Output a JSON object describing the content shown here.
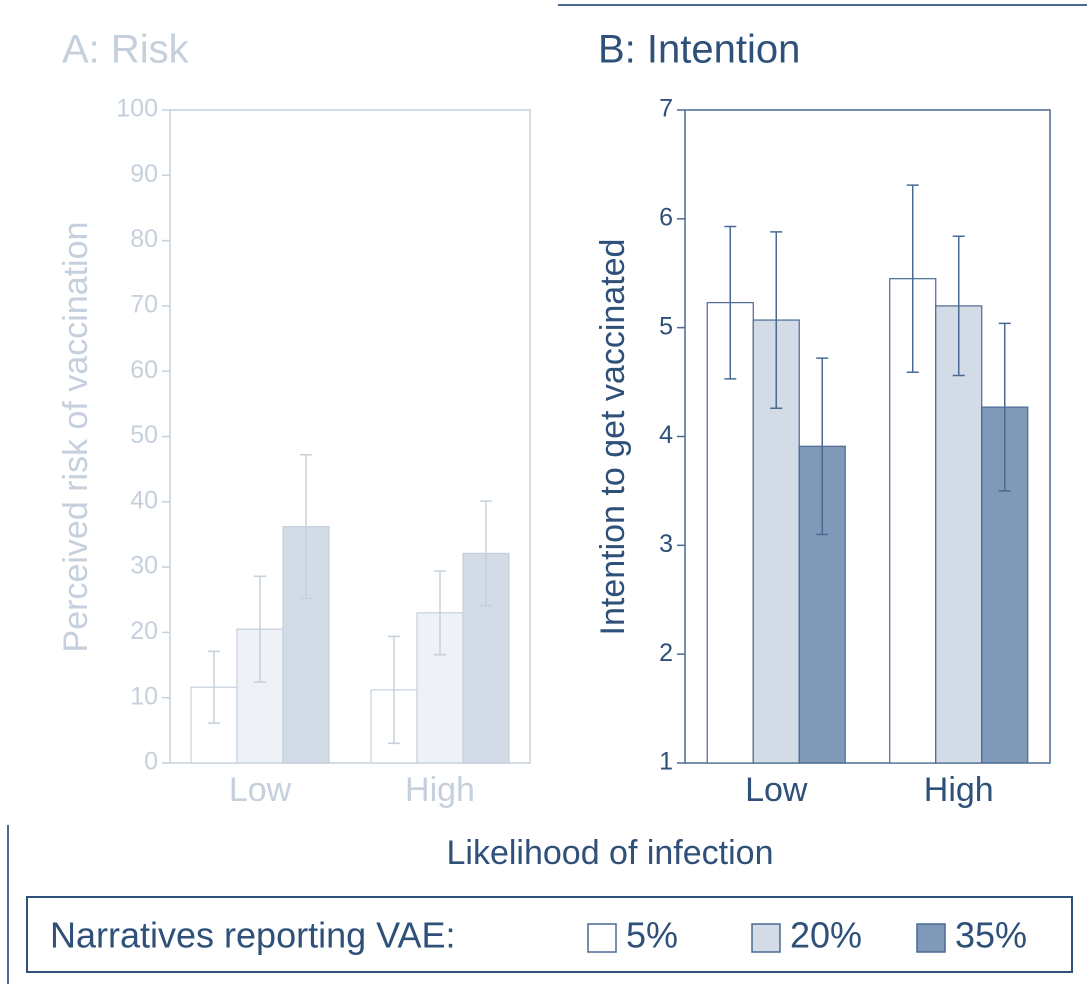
{
  "chart_data": [
    {
      "type": "bar",
      "title": "A: Risk",
      "ylabel": "Perceived risk of vaccination",
      "categories": [
        "Low",
        "High"
      ],
      "series": [
        {
          "name": "5%",
          "color": "#ffffff",
          "values": [
            11.6,
            11.2
          ],
          "errors": [
            5.5,
            8.2
          ]
        },
        {
          "name": "20%",
          "color": "#eef1f6",
          "values": [
            20.5,
            23
          ],
          "errors": [
            8.1,
            6.4
          ]
        },
        {
          "name": "35%",
          "color": "#d3dbe6",
          "values": [
            36.2,
            32.1
          ],
          "errors": [
            11,
            8
          ]
        }
      ],
      "ylim": [
        0,
        100
      ],
      "yticks": [
        0,
        10,
        20,
        30,
        40,
        50,
        60,
        70,
        80,
        90,
        100
      ],
      "text_color": "#c5d0dc",
      "edge_color": "#c5d0dc"
    },
    {
      "type": "bar",
      "title": "B: Intention",
      "ylabel": "Intention to get vaccinated",
      "categories": [
        "Low",
        "High"
      ],
      "series": [
        {
          "name": "5%",
          "color": "#ffffff",
          "values": [
            5.23,
            5.45
          ],
          "errors": [
            0.7,
            0.86
          ]
        },
        {
          "name": "20%",
          "color": "#d3dbe6",
          "values": [
            5.07,
            5.2
          ],
          "errors": [
            0.81,
            0.64
          ]
        },
        {
          "name": "35%",
          "color": "#8099b9",
          "values": [
            3.91,
            4.27
          ],
          "errors": [
            0.81,
            0.77
          ]
        }
      ],
      "ylim": [
        1,
        7
      ],
      "yticks": [
        1,
        2,
        3,
        4,
        5,
        6,
        7
      ],
      "text_color": "#2e5079",
      "edge_color": "#4a6a93"
    }
  ],
  "xlabel": "Likelihood of infection",
  "legend": {
    "title": "Narratives reporting VAE:"
  }
}
